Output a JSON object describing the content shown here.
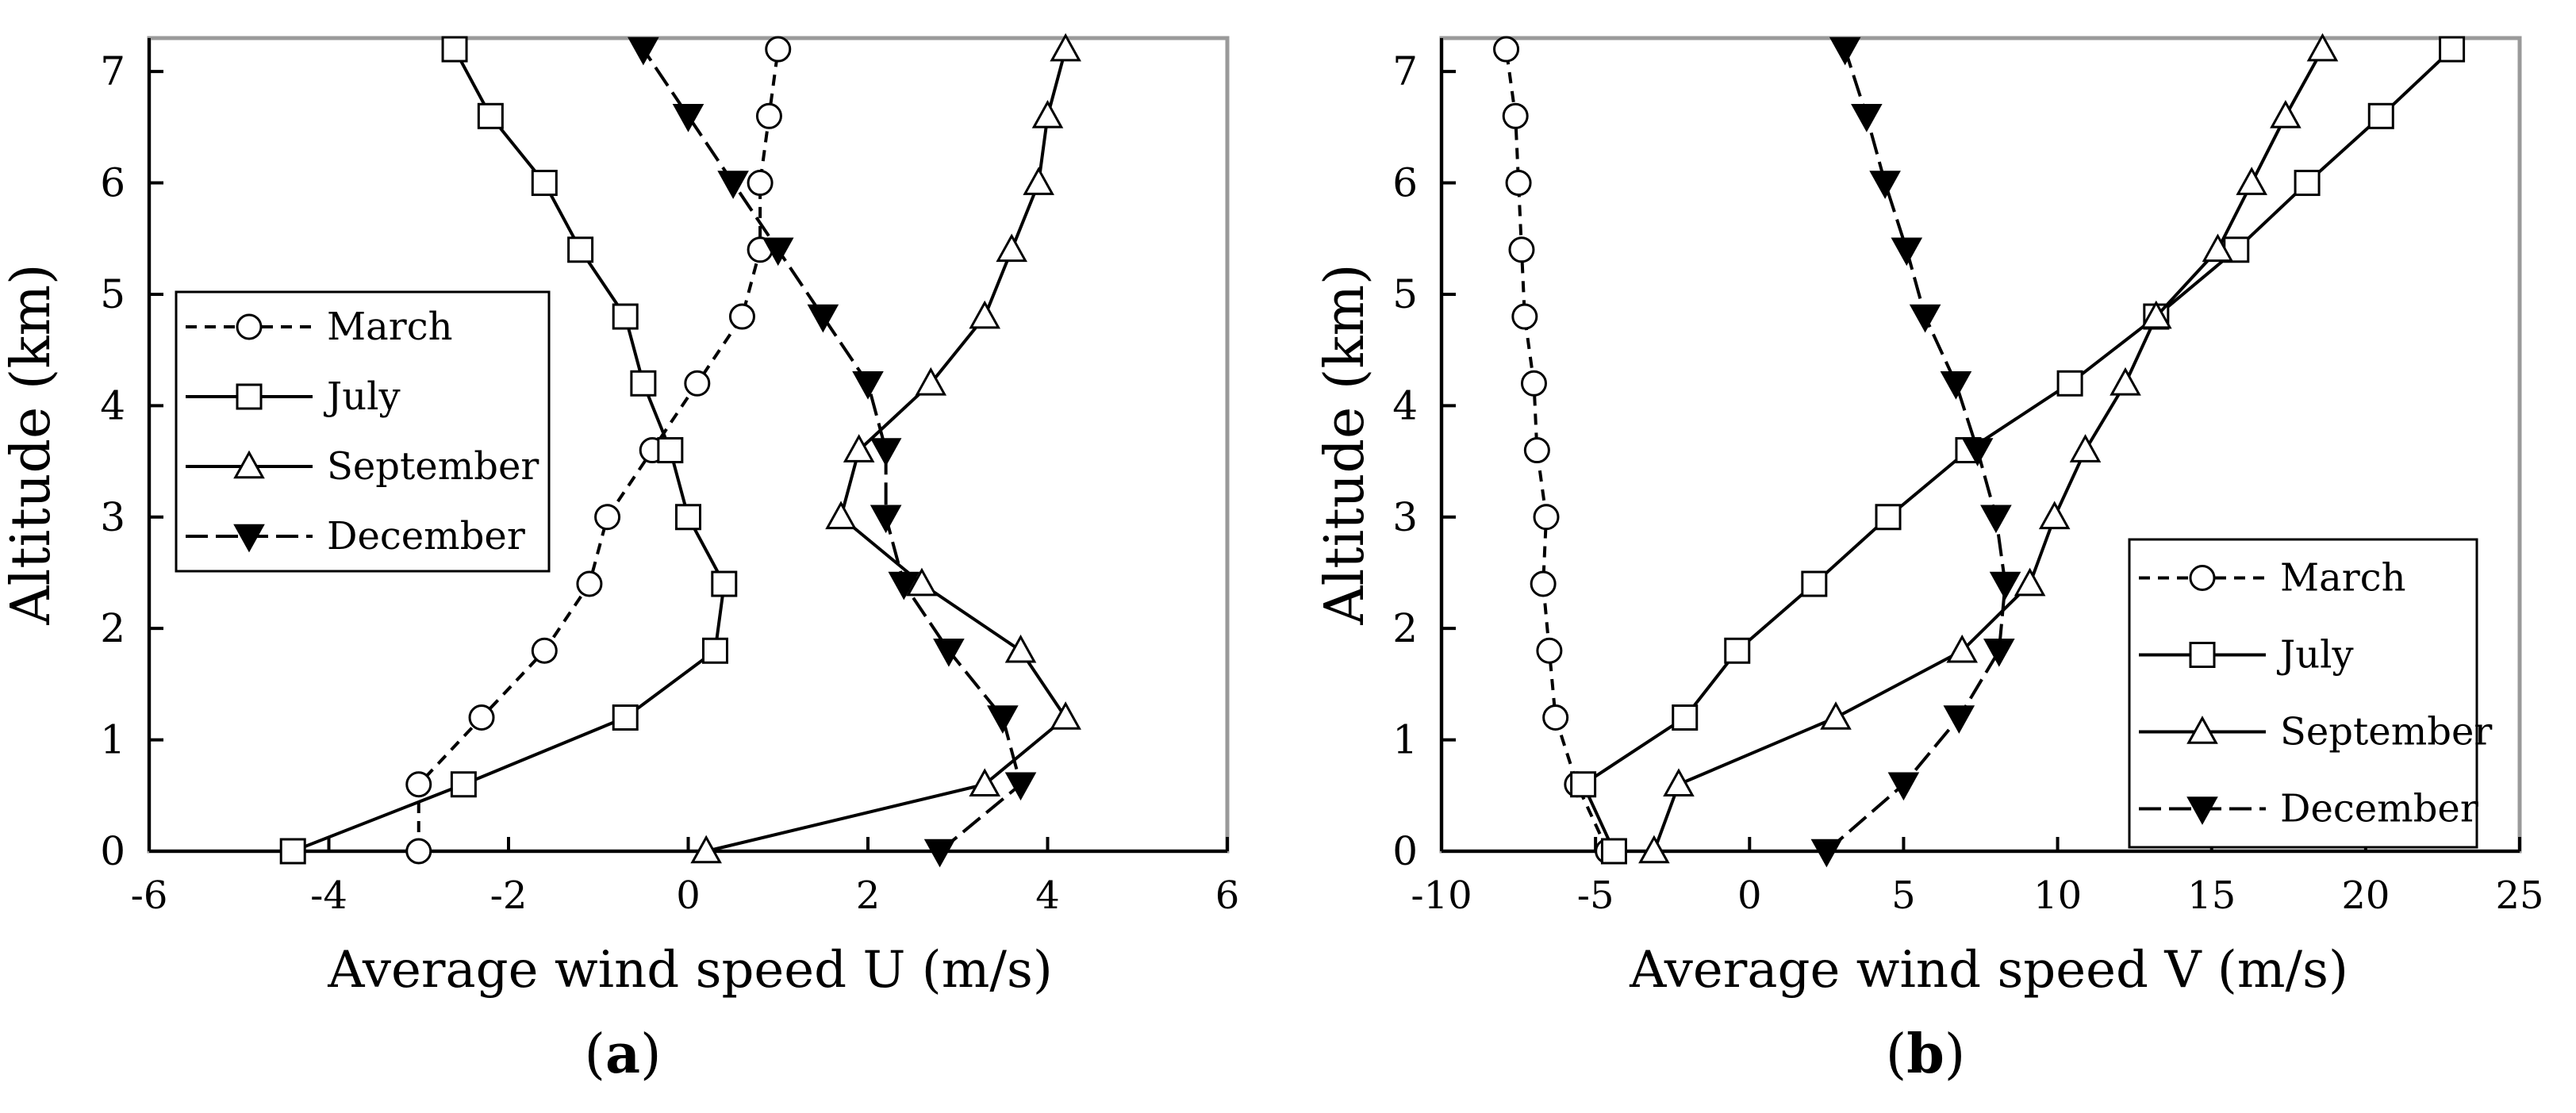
{
  "chart_data": [
    {
      "panel": "a",
      "panel_label": "a",
      "type": "line",
      "xlabel": "Average wind speed U (m/s)",
      "ylabel": "Altitude (km)",
      "xlim": [
        -6,
        6
      ],
      "ylim": [
        0,
        7.3
      ],
      "xticks": [
        "-6",
        "-4",
        "-2",
        "0",
        "2",
        "4",
        "6"
      ],
      "yticks": [
        "0",
        "1",
        "2",
        "3",
        "4",
        "5",
        "6",
        "7"
      ],
      "legend_position": "upper-left",
      "series": [
        {
          "name": "March",
          "line": "dashed",
          "marker": "circle",
          "x": [
            -3.0,
            -3.0,
            -2.3,
            -1.6,
            -1.1,
            -0.9,
            -0.4,
            0.1,
            0.6,
            0.8,
            0.8,
            0.9,
            1.0
          ],
          "y": [
            0,
            0.6,
            1.2,
            1.8,
            2.4,
            3.0,
            3.6,
            4.2,
            4.8,
            5.4,
            6.0,
            6.6,
            7.2
          ]
        },
        {
          "name": "July",
          "line": "solid",
          "marker": "square",
          "x": [
            -4.4,
            -2.5,
            -0.7,
            0.3,
            0.4,
            0.0,
            -0.2,
            -0.5,
            -0.7,
            -1.2,
            -1.6,
            -2.2,
            -2.6
          ],
          "y": [
            0,
            0.6,
            1.2,
            1.8,
            2.4,
            3.0,
            3.6,
            4.2,
            4.8,
            5.4,
            6.0,
            6.6,
            7.2
          ]
        },
        {
          "name": "September",
          "line": "solid",
          "marker": "triangle-up",
          "x": [
            0.2,
            3.3,
            4.2,
            3.7,
            2.6,
            1.7,
            1.9,
            2.7,
            3.3,
            3.6,
            3.9,
            4.0,
            4.2
          ],
          "y": [
            0,
            0.6,
            1.2,
            1.8,
            2.4,
            3.0,
            3.6,
            4.2,
            4.8,
            5.4,
            6.0,
            6.6,
            7.2
          ]
        },
        {
          "name": "December",
          "line": "dashed",
          "marker": "triangle-down",
          "x": [
            2.8,
            3.7,
            3.5,
            2.9,
            2.4,
            2.2,
            2.2,
            2.0,
            1.5,
            1.0,
            0.5,
            0.0,
            -0.5
          ],
          "y": [
            0,
            0.6,
            1.2,
            1.8,
            2.4,
            3.0,
            3.6,
            4.2,
            4.8,
            5.4,
            6.0,
            6.6,
            7.2
          ]
        }
      ]
    },
    {
      "panel": "b",
      "panel_label": "b",
      "type": "line",
      "xlabel": "Average wind speed V (m/s)",
      "ylabel": "Altitude (km)",
      "xlim": [
        -10,
        25
      ],
      "ylim": [
        0,
        7.3
      ],
      "xticks": [
        "-10",
        "-5",
        "0",
        "5",
        "10",
        "15",
        "20",
        "25"
      ],
      "yticks": [
        "0",
        "1",
        "2",
        "3",
        "4",
        "5",
        "6",
        "7"
      ],
      "legend_position": "lower-right",
      "series": [
        {
          "name": "March",
          "line": "dashed",
          "marker": "circle",
          "x": [
            -4.6,
            -5.6,
            -6.3,
            -6.5,
            -6.7,
            -6.6,
            -6.9,
            -7.0,
            -7.3,
            -7.4,
            -7.5,
            -7.6,
            -7.9
          ],
          "y": [
            0,
            0.6,
            1.2,
            1.8,
            2.4,
            3.0,
            3.6,
            4.2,
            4.8,
            5.4,
            6.0,
            6.6,
            7.2
          ]
        },
        {
          "name": "July",
          "line": "solid",
          "marker": "square",
          "x": [
            -4.4,
            -5.4,
            -2.1,
            -0.4,
            2.1,
            4.5,
            7.1,
            10.4,
            13.2,
            15.8,
            18.1,
            20.5,
            22.8
          ],
          "y": [
            0,
            0.6,
            1.2,
            1.8,
            2.4,
            3.0,
            3.6,
            4.2,
            4.8,
            5.4,
            6.0,
            6.6,
            7.2
          ]
        },
        {
          "name": "September",
          "line": "solid",
          "marker": "triangle-up",
          "x": [
            -3.1,
            -2.3,
            2.8,
            6.9,
            9.1,
            9.9,
            10.9,
            12.2,
            13.2,
            15.2,
            16.3,
            17.4,
            18.6
          ],
          "y": [
            0,
            0.6,
            1.2,
            1.8,
            2.4,
            3.0,
            3.6,
            4.2,
            4.8,
            5.4,
            6.0,
            6.6,
            7.2
          ]
        },
        {
          "name": "December",
          "line": "dashed",
          "marker": "triangle-down",
          "x": [
            2.5,
            5.0,
            6.8,
            8.1,
            8.3,
            8.0,
            7.4,
            6.7,
            5.7,
            5.1,
            4.4,
            3.8,
            3.1
          ],
          "y": [
            0,
            0.6,
            1.2,
            1.8,
            2.4,
            3.0,
            3.6,
            4.2,
            4.8,
            5.4,
            6.0,
            6.6,
            7.2
          ]
        }
      ]
    }
  ]
}
